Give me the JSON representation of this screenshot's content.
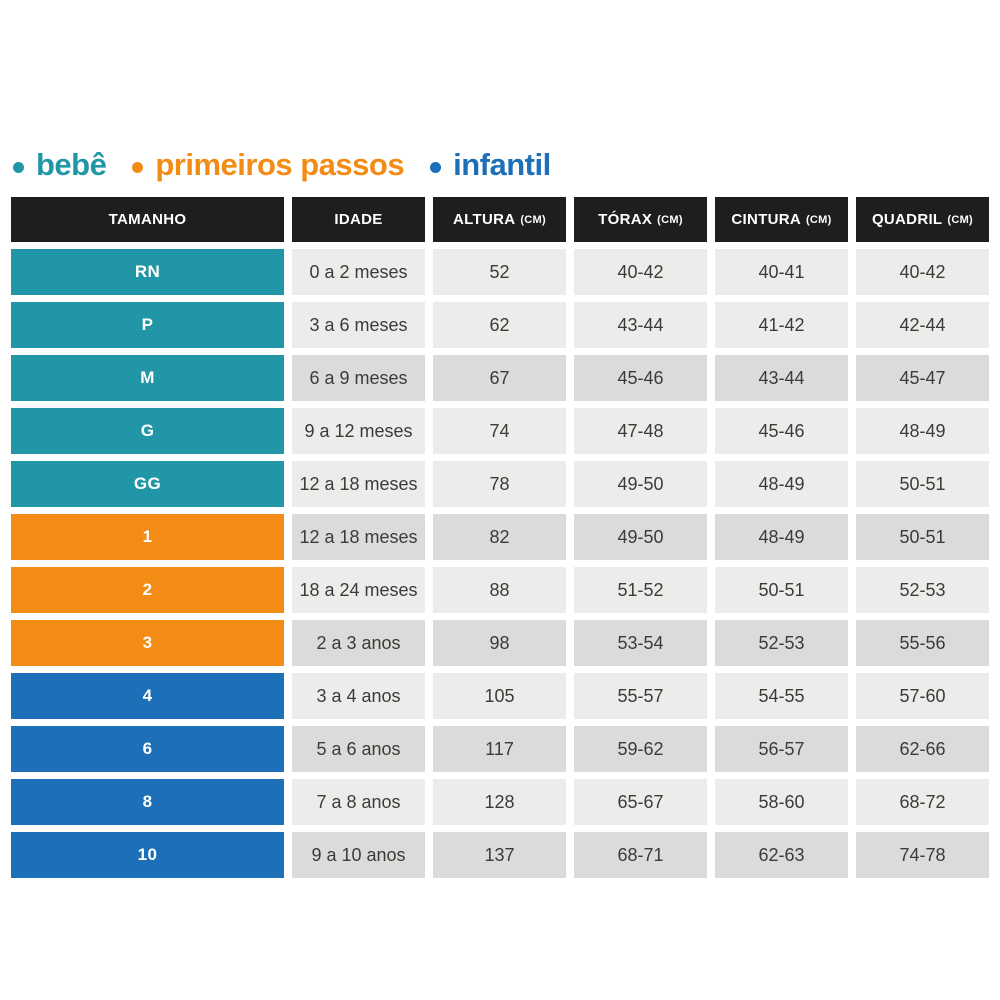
{
  "legend": {
    "items": [
      {
        "label": "bebê",
        "color": "#2196A6"
      },
      {
        "label": "primeiros passos",
        "color": "#F28C14"
      },
      {
        "label": "infantil",
        "color": "#1D6FB7"
      }
    ]
  },
  "table": {
    "header": {
      "bg": "#1E1E1C",
      "text_color": "#FFFFFF",
      "columns": [
        {
          "label": "TAMANHO",
          "unit": ""
        },
        {
          "label": "IDADE",
          "unit": ""
        },
        {
          "label": "ALTURA",
          "unit": "(CM)"
        },
        {
          "label": "TÓRAX",
          "unit": "(CM)"
        },
        {
          "label": "CINTURA",
          "unit": "(CM)"
        },
        {
          "label": "QUADRIL",
          "unit": "(CM)"
        }
      ]
    },
    "category_colors": {
      "bebe": "#2196A6",
      "primeiros_passos": "#F28C14",
      "infantil": "#1D6FB7"
    },
    "row_shades": {
      "light": "#ECECEA",
      "dark": "#DBDBD9"
    },
    "cell_text_color": "#3B3B39",
    "rows": [
      {
        "size": "RN",
        "category": "bebe",
        "shade": "light",
        "age": "0 a 2 meses",
        "height": "52",
        "chest": "40-42",
        "waist": "40-41",
        "hip": "40-42"
      },
      {
        "size": "P",
        "category": "bebe",
        "shade": "light",
        "age": "3 a 6 meses",
        "height": "62",
        "chest": "43-44",
        "waist": "41-42",
        "hip": "42-44"
      },
      {
        "size": "M",
        "category": "bebe",
        "shade": "dark",
        "age": "6 a 9 meses",
        "height": "67",
        "chest": "45-46",
        "waist": "43-44",
        "hip": "45-47"
      },
      {
        "size": "G",
        "category": "bebe",
        "shade": "light",
        "age": "9 a 12 meses",
        "height": "74",
        "chest": "47-48",
        "waist": "45-46",
        "hip": "48-49"
      },
      {
        "size": "GG",
        "category": "bebe",
        "shade": "light",
        "age": "12 a 18 meses",
        "height": "78",
        "chest": "49-50",
        "waist": "48-49",
        "hip": "50-51"
      },
      {
        "size": "1",
        "category": "primeiros_passos",
        "shade": "dark",
        "age": "12 a 18 meses",
        "height": "82",
        "chest": "49-50",
        "waist": "48-49",
        "hip": "50-51"
      },
      {
        "size": "2",
        "category": "primeiros_passos",
        "shade": "light",
        "age": "18 a 24 meses",
        "height": "88",
        "chest": "51-52",
        "waist": "50-51",
        "hip": "52-53"
      },
      {
        "size": "3",
        "category": "primeiros_passos",
        "shade": "dark",
        "age": "2 a 3 anos",
        "height": "98",
        "chest": "53-54",
        "waist": "52-53",
        "hip": "55-56"
      },
      {
        "size": "4",
        "category": "infantil",
        "shade": "light",
        "age": "3 a 4 anos",
        "height": "105",
        "chest": "55-57",
        "waist": "54-55",
        "hip": "57-60"
      },
      {
        "size": "6",
        "category": "infantil",
        "shade": "dark",
        "age": "5 a 6 anos",
        "height": "117",
        "chest": "59-62",
        "waist": "56-57",
        "hip": "62-66"
      },
      {
        "size": "8",
        "category": "infantil",
        "shade": "light",
        "age": "7 a 8 anos",
        "height": "128",
        "chest": "65-67",
        "waist": "58-60",
        "hip": "68-72"
      },
      {
        "size": "10",
        "category": "infantil",
        "shade": "dark",
        "age": "9 a 10 anos",
        "height": "137",
        "chest": "68-71",
        "waist": "62-63",
        "hip": "74-78"
      }
    ]
  },
  "chart_data": {
    "type": "table",
    "columns": [
      "TAMANHO",
      "IDADE",
      "ALTURA (CM)",
      "TÓRAX (CM)",
      "CINTURA (CM)",
      "QUADRIL (CM)"
    ],
    "rows": [
      [
        "RN",
        "0 a 2 meses",
        "52",
        "40-42",
        "40-41",
        "40-42"
      ],
      [
        "P",
        "3 a 6 meses",
        "62",
        "43-44",
        "41-42",
        "42-44"
      ],
      [
        "M",
        "6 a 9 meses",
        "67",
        "45-46",
        "43-44",
        "45-47"
      ],
      [
        "G",
        "9 a 12 meses",
        "74",
        "47-48",
        "45-46",
        "48-49"
      ],
      [
        "GG",
        "12 a 18 meses",
        "78",
        "49-50",
        "48-49",
        "50-51"
      ],
      [
        "1",
        "12 a 18 meses",
        "82",
        "49-50",
        "48-49",
        "50-51"
      ],
      [
        "2",
        "18 a 24 meses",
        "88",
        "51-52",
        "50-51",
        "52-53"
      ],
      [
        "3",
        "2 a 3 anos",
        "98",
        "53-54",
        "52-53",
        "55-56"
      ],
      [
        "4",
        "3 a 4 anos",
        "105",
        "55-57",
        "54-55",
        "57-60"
      ],
      [
        "6",
        "5 a 6 anos",
        "117",
        "59-62",
        "56-57",
        "62-66"
      ],
      [
        "8",
        "7 a 8 anos",
        "128",
        "65-67",
        "58-60",
        "68-72"
      ],
      [
        "10",
        "9 a 10 anos",
        "137",
        "68-71",
        "62-63",
        "74-78"
      ]
    ],
    "groups": [
      {
        "label": "bebê",
        "sizes": [
          "RN",
          "P",
          "M",
          "G",
          "GG"
        ],
        "color": "#2196A6"
      },
      {
        "label": "primeiros passos",
        "sizes": [
          "1",
          "2",
          "3"
        ],
        "color": "#F28C14"
      },
      {
        "label": "infantil",
        "sizes": [
          "4",
          "6",
          "8",
          "10"
        ],
        "color": "#1D6FB7"
      }
    ],
    "legend_position": "top-left",
    "grid": false
  }
}
